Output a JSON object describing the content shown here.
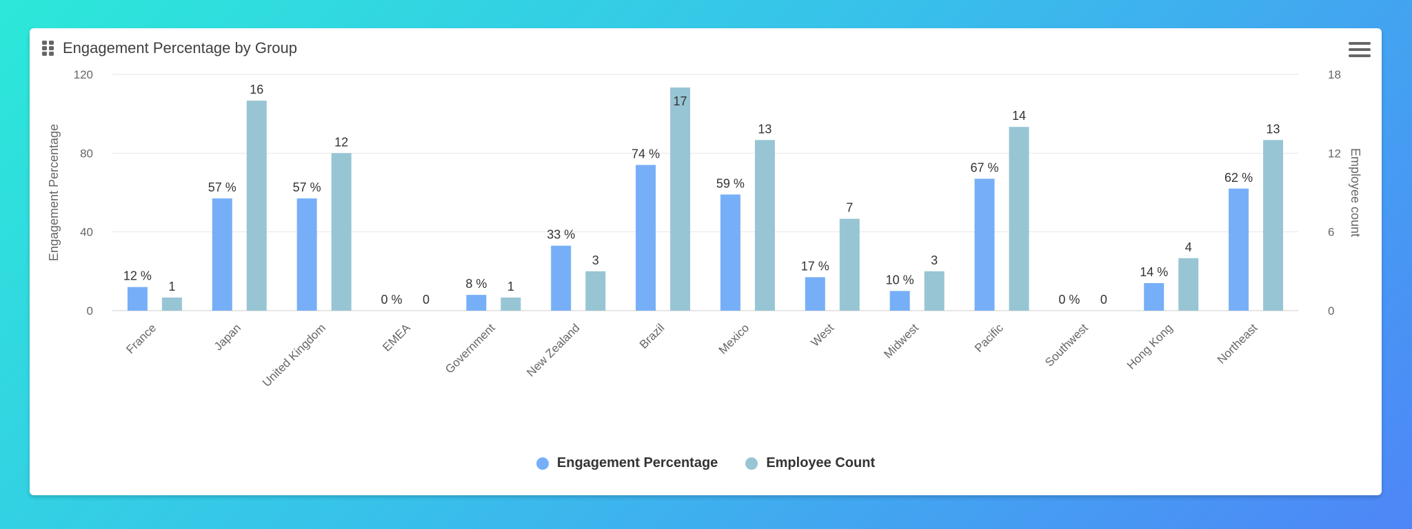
{
  "chart_data": {
    "type": "bar",
    "title": "Engagement Percentage by Group",
    "categories": [
      "France",
      "Japan",
      "United Kingdom",
      "EMEA",
      "Government",
      "New Zealand",
      "Brazil",
      "Mexico",
      "West",
      "Midwest",
      "Pacific",
      "Southwest",
      "Hong Kong",
      "Northeast"
    ],
    "series": [
      {
        "name": "Engagement Percentage",
        "axis": "left",
        "color": "#76aff7",
        "values": [
          12,
          57,
          57,
          0,
          8,
          33,
          74,
          59,
          17,
          10,
          67,
          0,
          14,
          62
        ],
        "labels": [
          "12 %",
          "57 %",
          "57 %",
          "0 %",
          "8 %",
          "33 %",
          "74 %",
          "59 %",
          "17 %",
          "10 %",
          "67 %",
          "0 %",
          "14 %",
          "62 %"
        ]
      },
      {
        "name": "Employee Count",
        "axis": "right",
        "color": "#97c5d4",
        "values": [
          1,
          16,
          12,
          0,
          1,
          3,
          17,
          13,
          7,
          3,
          14,
          0,
          4,
          13
        ],
        "labels": [
          "1",
          "16",
          "12",
          "0",
          "1",
          "3",
          "17",
          "13",
          "7",
          "3",
          "14",
          "0",
          "4",
          "13"
        ]
      }
    ],
    "ylabel": "Engagement Percentage",
    "y2label": "Employee count",
    "ylim": [
      0,
      120
    ],
    "y2lim": [
      0,
      18
    ],
    "yticks": [
      "0",
      "40",
      "80",
      "120"
    ],
    "y2ticks": [
      "0",
      "6",
      "12",
      "18"
    ],
    "grid": true,
    "legend_position": "bottom"
  },
  "colors": {
    "primary_bar": "#76aff7",
    "secondary_bar": "#97c5d4",
    "grid": "#e6e6e6"
  },
  "icons": {
    "title_icon": "grid-dots-icon",
    "menu_icon": "hamburger-menu-icon"
  }
}
